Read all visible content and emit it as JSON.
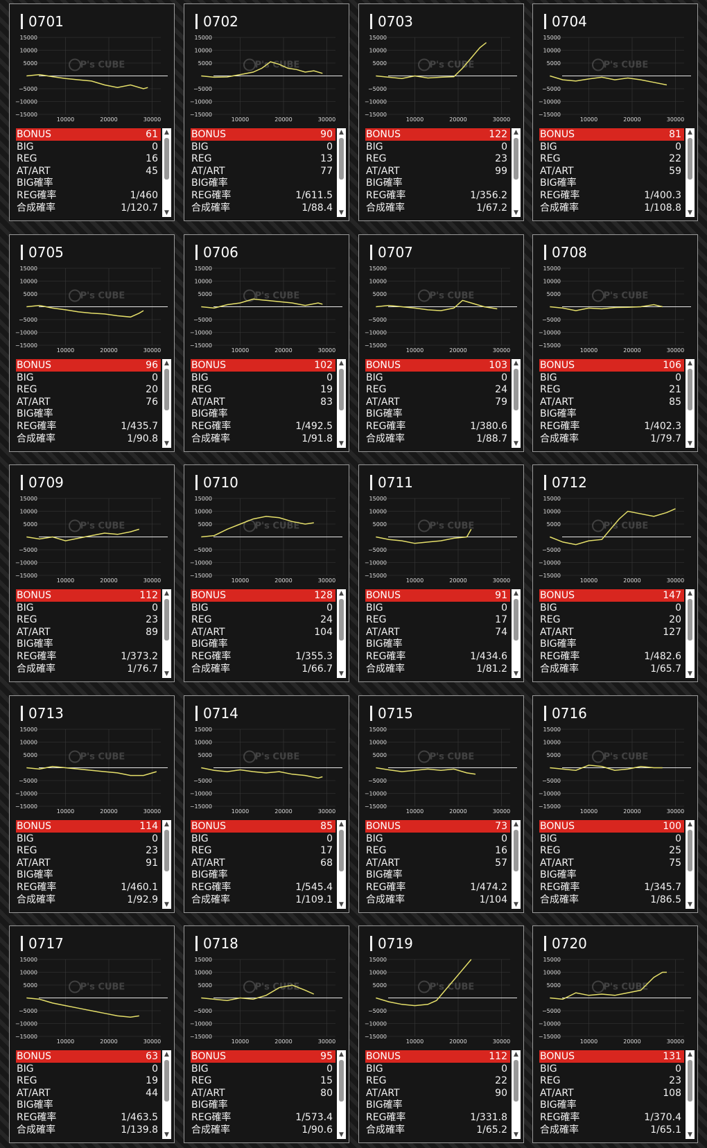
{
  "watermark": {
    "brand": "P's CUBE"
  },
  "chart_axes": {
    "y_ticks": [
      "15000",
      "10000",
      "5000",
      "−5000",
      "−10000",
      "−15000"
    ],
    "x_ticks": [
      "10000",
      "20000",
      "30000"
    ]
  },
  "stat_labels": {
    "bonus": "BONUS",
    "big": "BIG",
    "reg": "REG",
    "atart": "AT/ART",
    "big_rate": "BIG確率",
    "reg_rate": "REG確率",
    "total_rate": "合成確率"
  },
  "colors": {
    "line": "#e6e06a",
    "bonus_bar": "#d8261f",
    "card_bg": "#161616"
  },
  "machines": [
    {
      "id": "0701",
      "bonus": "61",
      "big": "0",
      "reg": "16",
      "atart": "45",
      "big_rate": "",
      "reg_rate": "1/460",
      "total_rate": "1/120.7",
      "chart_data": {
        "type": "line",
        "x": [
          0,
          3000,
          6000,
          9000,
          12000,
          15000,
          18000,
          21000,
          24000,
          27000,
          28000
        ],
        "y": [
          0,
          500,
          -300,
          -1000,
          -1500,
          -2000,
          -3500,
          -4500,
          -3500,
          -5000,
          -4500
        ]
      }
    },
    {
      "id": "0702",
      "bonus": "90",
      "big": "0",
      "reg": "13",
      "atart": "77",
      "big_rate": "",
      "reg_rate": "1/611.5",
      "total_rate": "1/88.4",
      "chart_data": {
        "type": "line",
        "x": [
          0,
          3000,
          6000,
          9000,
          12000,
          14000,
          16000,
          18000,
          20000,
          22000,
          24000,
          26000,
          28000
        ],
        "y": [
          0,
          -500,
          -400,
          500,
          1500,
          3000,
          5500,
          4500,
          3000,
          2500,
          1500,
          2000,
          1000
        ]
      }
    },
    {
      "id": "0703",
      "bonus": "122",
      "big": "0",
      "reg": "23",
      "atart": "99",
      "big_rate": "",
      "reg_rate": "1/356.2",
      "total_rate": "1/67.2",
      "chart_data": {
        "type": "line",
        "x": [
          0,
          3000,
          6000,
          9000,
          12000,
          15000,
          18000,
          20000,
          22000,
          24000,
          25500
        ],
        "y": [
          0,
          -500,
          -1000,
          0,
          -800,
          -500,
          -300,
          3000,
          7000,
          11000,
          13000
        ]
      }
    },
    {
      "id": "0704",
      "bonus": "81",
      "big": "0",
      "reg": "22",
      "atart": "59",
      "big_rate": "",
      "reg_rate": "1/400.3",
      "total_rate": "1/108.8",
      "chart_data": {
        "type": "line",
        "x": [
          0,
          3000,
          6000,
          9000,
          12000,
          15000,
          18000,
          21000,
          24000,
          27000
        ],
        "y": [
          0,
          -1500,
          -2000,
          -1200,
          -500,
          -1500,
          -800,
          -1500,
          -2500,
          -3500
        ]
      }
    },
    {
      "id": "0705",
      "bonus": "96",
      "big": "0",
      "reg": "20",
      "atart": "76",
      "big_rate": "",
      "reg_rate": "1/435.7",
      "total_rate": "1/90.8",
      "chart_data": {
        "type": "line",
        "x": [
          0,
          3000,
          6000,
          9000,
          12000,
          15000,
          18000,
          21000,
          24000,
          26000,
          27000
        ],
        "y": [
          0,
          500,
          -500,
          -1200,
          -2000,
          -2500,
          -2800,
          -3500,
          -4000,
          -2500,
          -1500
        ]
      }
    },
    {
      "id": "0706",
      "bonus": "102",
      "big": "0",
      "reg": "19",
      "atart": "83",
      "big_rate": "",
      "reg_rate": "1/492.5",
      "total_rate": "1/91.8",
      "chart_data": {
        "type": "line",
        "x": [
          0,
          3000,
          6000,
          9000,
          12000,
          15000,
          18000,
          21000,
          24000,
          27000,
          28000
        ],
        "y": [
          0,
          -500,
          800,
          1500,
          3000,
          2500,
          2000,
          1500,
          500,
          1500,
          1000
        ]
      }
    },
    {
      "id": "0707",
      "bonus": "103",
      "big": "0",
      "reg": "24",
      "atart": "79",
      "big_rate": "",
      "reg_rate": "1/380.6",
      "total_rate": "1/88.7",
      "chart_data": {
        "type": "line",
        "x": [
          0,
          3000,
          6000,
          9000,
          12000,
          15000,
          18000,
          20000,
          22000,
          25000,
          28000
        ],
        "y": [
          0,
          500,
          0,
          -500,
          -1200,
          -1500,
          -500,
          2500,
          1500,
          0,
          -800
        ]
      }
    },
    {
      "id": "0708",
      "bonus": "106",
      "big": "0",
      "reg": "21",
      "atart": "85",
      "big_rate": "",
      "reg_rate": "1/402.3",
      "total_rate": "1/79.7",
      "chart_data": {
        "type": "line",
        "x": [
          0,
          3000,
          6000,
          9000,
          12000,
          15000,
          18000,
          21000,
          24000,
          26000
        ],
        "y": [
          0,
          -500,
          -1500,
          -500,
          -800,
          -300,
          -200,
          0,
          800,
          0
        ]
      }
    },
    {
      "id": "0709",
      "bonus": "112",
      "big": "0",
      "reg": "23",
      "atart": "89",
      "big_rate": "",
      "reg_rate": "1/373.2",
      "total_rate": "1/76.7",
      "chart_data": {
        "type": "line",
        "x": [
          0,
          3000,
          6000,
          9000,
          12000,
          15000,
          18000,
          21000,
          24000,
          26000
        ],
        "y": [
          0,
          -800,
          0,
          -1500,
          -500,
          500,
          1500,
          1000,
          2000,
          3000
        ]
      }
    },
    {
      "id": "0710",
      "bonus": "128",
      "big": "0",
      "reg": "24",
      "atart": "104",
      "big_rate": "",
      "reg_rate": "1/355.3",
      "total_rate": "1/66.7",
      "chart_data": {
        "type": "line",
        "x": [
          0,
          3000,
          6000,
          9000,
          12000,
          15000,
          18000,
          21000,
          24000,
          26000
        ],
        "y": [
          0,
          500,
          3000,
          5000,
          7000,
          8000,
          7500,
          6000,
          5000,
          5500
        ]
      }
    },
    {
      "id": "0711",
      "bonus": "91",
      "big": "0",
      "reg": "17",
      "atart": "74",
      "big_rate": "",
      "reg_rate": "1/434.6",
      "total_rate": "1/81.2",
      "chart_data": {
        "type": "line",
        "x": [
          0,
          3000,
          6000,
          9000,
          12000,
          15000,
          18000,
          21000,
          22000
        ],
        "y": [
          0,
          -1000,
          -1500,
          -2500,
          -2000,
          -1500,
          -500,
          0,
          3000
        ]
      }
    },
    {
      "id": "0712",
      "bonus": "147",
      "big": "0",
      "reg": "20",
      "atart": "127",
      "big_rate": "",
      "reg_rate": "1/482.6",
      "total_rate": "1/65.7",
      "chart_data": {
        "type": "line",
        "x": [
          0,
          3000,
          6000,
          9000,
          12000,
          14000,
          16000,
          18000,
          21000,
          24000,
          27000,
          29000
        ],
        "y": [
          0,
          -2000,
          -3000,
          -1500,
          -1000,
          3000,
          7000,
          10000,
          9000,
          8000,
          9500,
          11000
        ]
      }
    },
    {
      "id": "0713",
      "bonus": "114",
      "big": "0",
      "reg": "23",
      "atart": "91",
      "big_rate": "",
      "reg_rate": "1/460.1",
      "total_rate": "1/92.9",
      "chart_data": {
        "type": "line",
        "x": [
          0,
          3000,
          6000,
          9000,
          12000,
          15000,
          18000,
          21000,
          24000,
          27000,
          30000
        ],
        "y": [
          0,
          -500,
          500,
          0,
          -500,
          -1000,
          -1500,
          -2000,
          -3000,
          -3000,
          -1500
        ]
      }
    },
    {
      "id": "0714",
      "bonus": "85",
      "big": "0",
      "reg": "17",
      "atart": "68",
      "big_rate": "",
      "reg_rate": "1/545.4",
      "total_rate": "1/109.1",
      "chart_data": {
        "type": "line",
        "x": [
          0,
          3000,
          6000,
          9000,
          12000,
          15000,
          18000,
          21000,
          24000,
          27000,
          28000
        ],
        "y": [
          0,
          -1000,
          -1500,
          -800,
          -1500,
          -2000,
          -1500,
          -2500,
          -3000,
          -4000,
          -3500
        ]
      }
    },
    {
      "id": "0715",
      "bonus": "73",
      "big": "0",
      "reg": "16",
      "atart": "57",
      "big_rate": "",
      "reg_rate": "1/474.2",
      "total_rate": "1/104",
      "chart_data": {
        "type": "line",
        "x": [
          0,
          3000,
          6000,
          9000,
          12000,
          15000,
          18000,
          21000,
          23000
        ],
        "y": [
          0,
          -800,
          -1500,
          -1000,
          -500,
          -1000,
          -500,
          -2000,
          -2500
        ]
      }
    },
    {
      "id": "0716",
      "bonus": "100",
      "big": "0",
      "reg": "25",
      "atart": "75",
      "big_rate": "",
      "reg_rate": "1/345.7",
      "total_rate": "1/86.5",
      "chart_data": {
        "type": "line",
        "x": [
          0,
          3000,
          6000,
          9000,
          12000,
          15000,
          18000,
          21000,
          24000,
          26000
        ],
        "y": [
          0,
          -500,
          -1000,
          1000,
          500,
          -1000,
          -500,
          500,
          0,
          0
        ]
      }
    },
    {
      "id": "0717",
      "bonus": "63",
      "big": "0",
      "reg": "19",
      "atart": "44",
      "big_rate": "",
      "reg_rate": "1/463.5",
      "total_rate": "1/139.8",
      "chart_data": {
        "type": "line",
        "x": [
          0,
          3000,
          6000,
          9000,
          12000,
          15000,
          18000,
          21000,
          24000,
          26000
        ],
        "y": [
          0,
          -500,
          -2000,
          -3000,
          -4000,
          -5000,
          -6000,
          -7000,
          -7500,
          -7000
        ]
      }
    },
    {
      "id": "0718",
      "bonus": "95",
      "big": "0",
      "reg": "15",
      "atart": "80",
      "big_rate": "",
      "reg_rate": "1/573.4",
      "total_rate": "1/90.6",
      "chart_data": {
        "type": "line",
        "x": [
          0,
          3000,
          6000,
          9000,
          12000,
          15000,
          18000,
          21000,
          24000,
          26000
        ],
        "y": [
          0,
          -500,
          -1000,
          0,
          -500,
          1000,
          4000,
          5000,
          3000,
          1500
        ]
      }
    },
    {
      "id": "0719",
      "bonus": "112",
      "big": "0",
      "reg": "22",
      "atart": "90",
      "big_rate": "",
      "reg_rate": "1/331.8",
      "total_rate": "1/65.2",
      "chart_data": {
        "type": "line",
        "x": [
          0,
          3000,
          6000,
          9000,
          12000,
          14000,
          16000,
          18000,
          20000,
          22000
        ],
        "y": [
          0,
          -1500,
          -2500,
          -3000,
          -2500,
          -1000,
          3000,
          7000,
          11000,
          15000
        ]
      }
    },
    {
      "id": "0720",
      "bonus": "131",
      "big": "0",
      "reg": "23",
      "atart": "108",
      "big_rate": "",
      "reg_rate": "1/370.4",
      "total_rate": "1/65.1",
      "chart_data": {
        "type": "line",
        "x": [
          0,
          3000,
          6000,
          9000,
          12000,
          15000,
          18000,
          21000,
          24000,
          26000,
          27000
        ],
        "y": [
          0,
          -500,
          2000,
          1000,
          1500,
          1000,
          2000,
          3000,
          8000,
          10000,
          10000
        ]
      }
    }
  ]
}
